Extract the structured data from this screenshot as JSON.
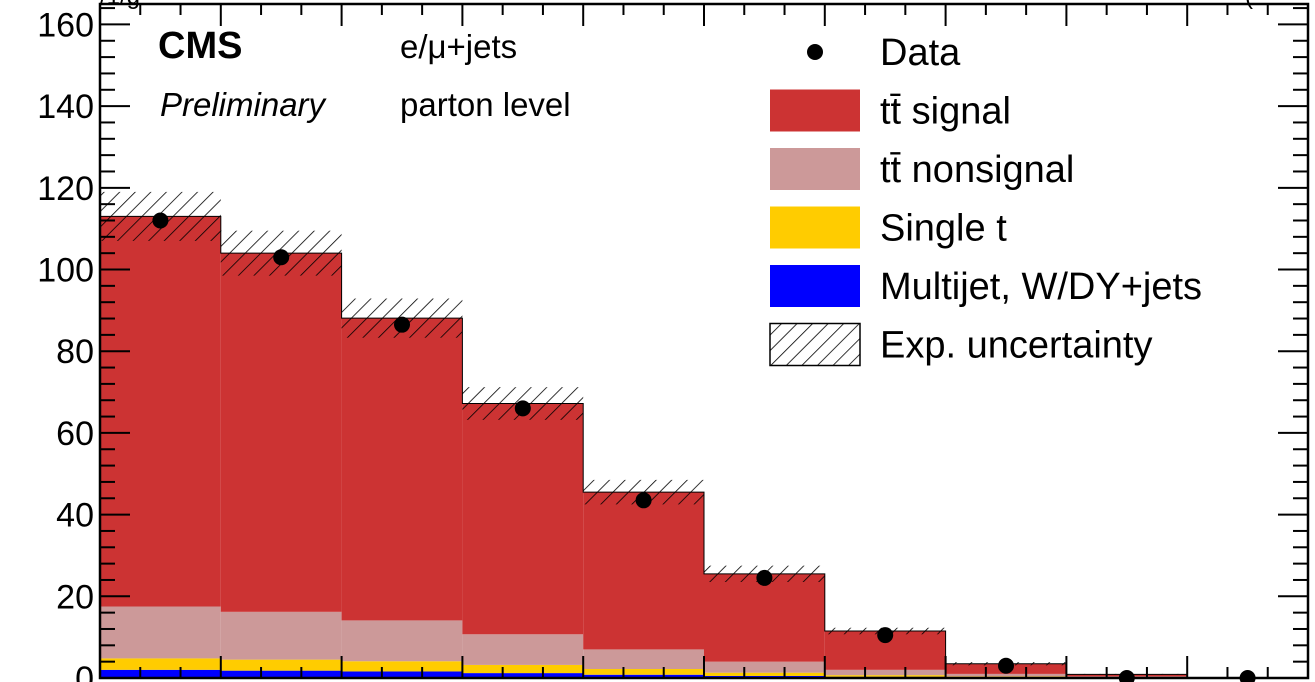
{
  "chart_data": {
    "type": "bar",
    "stacked": true,
    "header_left_fragment": "/1/g",
    "header_right_fragment": "(",
    "ylim": [
      0,
      165
    ],
    "yticks": [
      0,
      20,
      40,
      60,
      80,
      100,
      120,
      140,
      160
    ],
    "ytick_labels": [
      "0",
      "20",
      "40",
      "60",
      "80",
      "100",
      "120",
      "140",
      "160"
    ],
    "y_minor_step": 4,
    "n_bins": 10,
    "x_minor_per_bin": 3,
    "series": [
      {
        "name": "Multijet, W/DY+jets",
        "color": "#0000ff",
        "values": [
          2.0,
          1.8,
          1.6,
          1.2,
          0.8,
          0.5,
          0.3,
          0.2,
          0.1,
          0.0
        ]
      },
      {
        "name": "Single t",
        "color": "#ffcc00",
        "values": [
          2.8,
          2.7,
          2.5,
          2.0,
          1.4,
          0.8,
          0.4,
          0.2,
          0.1,
          0.0
        ]
      },
      {
        "name": "tt̄ nonsignal",
        "color": "#cc9999",
        "values": [
          12.7,
          11.7,
          10.0,
          7.5,
          4.8,
          2.7,
          1.3,
          0.6,
          0.2,
          0.0
        ]
      },
      {
        "name": "tt̄ signal",
        "color": "#cc3333",
        "values": [
          95.5,
          87.8,
          74.0,
          56.5,
          38.5,
          21.5,
          9.5,
          2.5,
          0.5,
          0.0
        ]
      }
    ],
    "uncertainty": {
      "name": "Exp. uncertainty",
      "half_width": [
        6.0,
        5.5,
        4.8,
        4.0,
        3.0,
        2.0,
        0.8,
        0.4,
        0.1,
        0.0
      ]
    },
    "data": {
      "name": "Data",
      "values": [
        112,
        103,
        86.5,
        66,
        43.5,
        24.5,
        10.5,
        3.0,
        0.0,
        0.0
      ]
    },
    "annotations": {
      "experiment": "CMS",
      "status": "Preliminary",
      "channel": "e/μ+jets",
      "level": "parton level"
    },
    "legend": {
      "placement": "top-right",
      "entries": [
        {
          "label": "Data",
          "style": "marker",
          "color": "#000000"
        },
        {
          "label": "tt̄ signal",
          "style": "box",
          "color": "#cc3333"
        },
        {
          "label": "tt̄ nonsignal",
          "style": "box",
          "color": "#cc9999"
        },
        {
          "label": "Single t",
          "style": "box",
          "color": "#ffcc00"
        },
        {
          "label": "Multijet, W/DY+jets",
          "style": "box",
          "color": "#0000ff"
        },
        {
          "label": "Exp. uncertainty",
          "style": "hatch",
          "color": "#000000"
        }
      ]
    }
  }
}
